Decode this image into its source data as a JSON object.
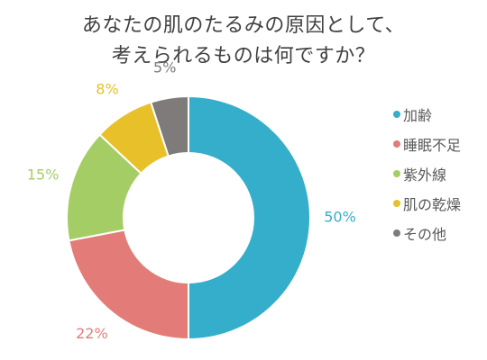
{
  "chart_data": {
    "type": "pie",
    "title_lines": [
      "あなたの肌のたるみの原因として、",
      "考えられるものは何ですか？"
    ],
    "categories": [
      "加齢",
      "睡眠不足",
      "紫外線",
      "肌の乾燥",
      "その他"
    ],
    "values": [
      50,
      22,
      15,
      8,
      5
    ],
    "value_labels": [
      "50%",
      "22%",
      "15%",
      "8%",
      "5%"
    ],
    "colors": [
      "#35AECB",
      "#E37C79",
      "#A5CD66",
      "#E8C12A",
      "#7F7B7B"
    ],
    "donut": true,
    "legend_position": "right"
  }
}
